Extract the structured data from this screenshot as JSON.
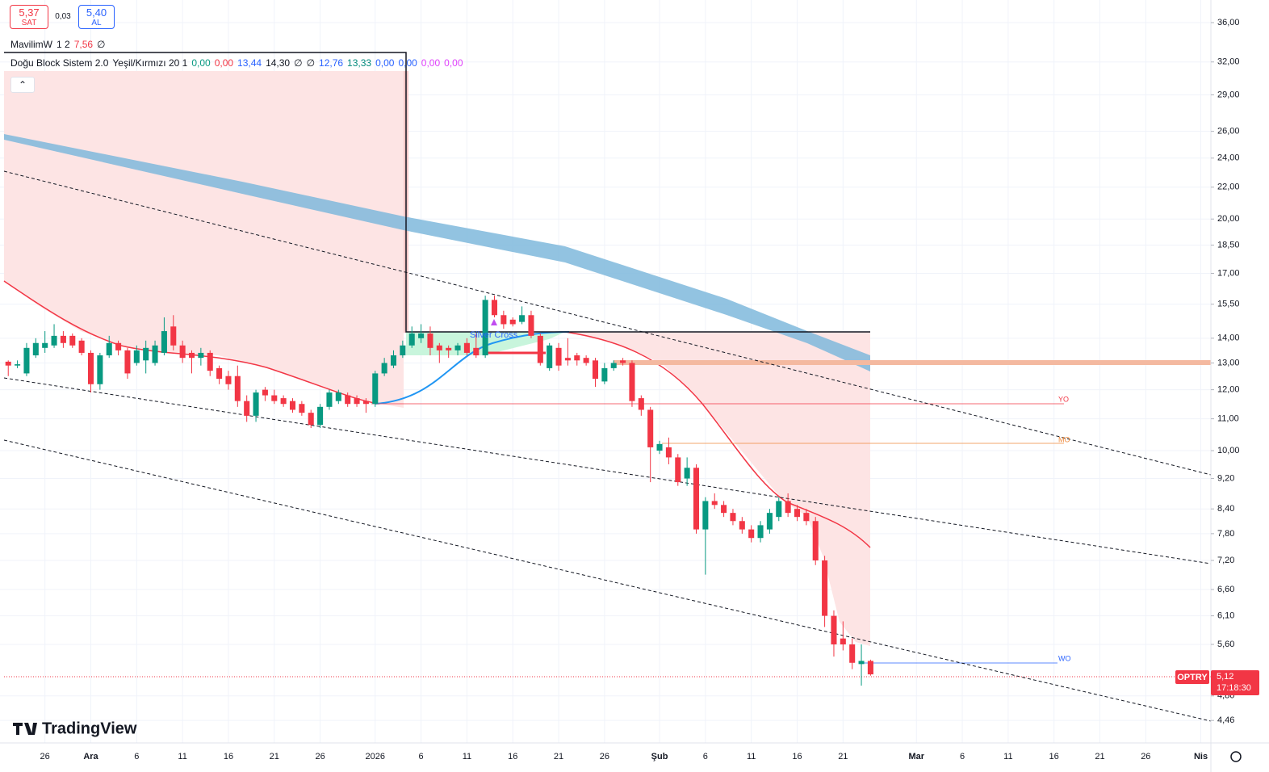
{
  "header": {
    "sell_price": "5,37",
    "sell_label": "SAT",
    "spread": "0,03",
    "buy_price": "5,40",
    "buy_label": "AL"
  },
  "indicators": [
    {
      "name": "MavilimW",
      "params": "1 2",
      "values": [
        {
          "text": "7,56",
          "color": "#f23645"
        },
        {
          "text": "∅",
          "color": "#131722"
        }
      ]
    },
    {
      "name": "Doğu Block Sistem 2.0",
      "params": "Yeşil/Kırmızı 20 1",
      "values": [
        {
          "text": "0,00",
          "color": "#089981"
        },
        {
          "text": "0,00",
          "color": "#f23645"
        },
        {
          "text": "13,44",
          "color": "#2962ff"
        },
        {
          "text": "14,30",
          "color": "#131722"
        },
        {
          "text": "∅",
          "color": "#131722"
        },
        {
          "text": "∅",
          "color": "#131722"
        },
        {
          "text": "12,76",
          "color": "#2962ff"
        },
        {
          "text": "13,33",
          "color": "#00897b"
        },
        {
          "text": "0,00",
          "color": "#2962ff"
        },
        {
          "text": "0,00",
          "color": "#2962ff"
        },
        {
          "text": "0,00",
          "color": "#e040fb"
        },
        {
          "text": "0,00",
          "color": "#e040fb"
        }
      ]
    }
  ],
  "chart_data": {
    "type": "candlestick",
    "log_scale": true,
    "grid": true,
    "up_color": "#089981",
    "down_color": "#f23645",
    "series": [
      {
        "name": "OPTRY",
        "x": [
          0,
          1,
          2,
          3,
          4,
          5,
          6,
          7,
          8,
          9,
          10,
          11,
          12,
          13,
          14,
          15,
          16,
          17,
          18,
          19,
          20,
          21,
          22,
          23,
          24,
          25,
          26,
          27,
          28,
          29,
          30,
          31,
          32,
          33,
          34,
          35,
          36,
          37,
          38,
          39,
          40,
          41,
          42,
          43,
          44,
          45,
          46,
          47,
          48,
          49,
          50,
          51,
          52,
          53,
          54,
          55,
          56,
          57,
          58,
          59,
          60,
          61,
          62,
          63,
          64,
          65,
          66,
          67,
          68,
          69,
          70,
          71,
          72,
          73,
          74,
          75,
          76,
          77,
          78,
          79,
          80,
          81,
          82,
          83,
          84,
          85,
          86,
          87,
          88,
          89,
          90,
          91,
          92,
          93,
          94
        ],
        "open": [
          13.05,
          12.9,
          12.6,
          13.3,
          13.6,
          13.7,
          14.1,
          14.1,
          13.9,
          13.4,
          12.2,
          13.3,
          13.8,
          13.5,
          13.0,
          13.1,
          13.0,
          13.4,
          14.5,
          13.7,
          13.4,
          13.2,
          13.4,
          12.8,
          12.5,
          12.5,
          11.6,
          11.1,
          12.0,
          11.8,
          11.7,
          11.6,
          11.5,
          11.2,
          10.8,
          11.4,
          11.6,
          11.8,
          11.7,
          11.6,
          11.5,
          12.6,
          12.9,
          13.3,
          13.7,
          14.0,
          14.2,
          13.7,
          13.6,
          13.5,
          13.8,
          13.6,
          13.3,
          15.7,
          15.0,
          14.8,
          14.7,
          15.0,
          14.1,
          12.8,
          13.6,
          13.2,
          13.3,
          13.2,
          13.1,
          12.3,
          12.8,
          13.1,
          13.0,
          11.7,
          11.3,
          10.0,
          10.1,
          9.8,
          9.2,
          9.5,
          7.9,
          8.6,
          8.5,
          8.3,
          8.1,
          7.9,
          7.7,
          7.9,
          8.2,
          8.6,
          8.4,
          8.3,
          8.1,
          7.2,
          6.1,
          5.7,
          5.6,
          5.28,
          5.33
        ],
        "high": [
          13.1,
          13.1,
          13.8,
          14.0,
          14.3,
          14.6,
          14.3,
          14.2,
          14.0,
          13.5,
          13.4,
          14.1,
          13.9,
          13.6,
          13.7,
          13.9,
          13.9,
          14.9,
          15.0,
          13.9,
          13.5,
          13.6,
          13.5,
          12.9,
          12.7,
          12.9,
          11.8,
          12.0,
          12.1,
          12.0,
          11.8,
          11.7,
          11.6,
          11.3,
          11.5,
          12.0,
          12.0,
          11.9,
          11.8,
          11.7,
          12.7,
          13.2,
          13.5,
          13.9,
          14.5,
          14.6,
          14.5,
          13.8,
          13.7,
          13.8,
          14.0,
          14.2,
          15.9,
          15.9,
          15.2,
          14.9,
          15.4,
          15.2,
          14.2,
          13.8,
          13.8,
          14.0,
          13.4,
          13.3,
          13.2,
          13.0,
          13.1,
          13.2,
          13.1,
          11.8,
          11.4,
          10.3,
          10.4,
          9.9,
          9.8,
          9.6,
          8.7,
          8.8,
          8.6,
          8.4,
          8.2,
          8.0,
          8.1,
          8.4,
          8.7,
          8.8,
          8.5,
          8.4,
          8.2,
          7.3,
          6.2,
          6.0,
          5.7,
          5.6,
          5.35
        ],
        "low": [
          12.5,
          12.8,
          12.5,
          13.2,
          13.4,
          13.6,
          13.6,
          13.6,
          13.3,
          11.9,
          12.0,
          13.2,
          13.3,
          12.4,
          12.9,
          12.6,
          12.9,
          13.3,
          13.5,
          13.0,
          12.6,
          12.9,
          12.5,
          12.2,
          12.0,
          11.4,
          10.9,
          10.9,
          11.6,
          11.5,
          11.4,
          11.2,
          11.1,
          10.7,
          10.7,
          11.3,
          11.5,
          11.4,
          11.4,
          11.2,
          11.4,
          12.5,
          12.8,
          13.2,
          13.6,
          13.8,
          13.3,
          13.0,
          13.2,
          13.3,
          13.3,
          13.2,
          13.2,
          14.9,
          14.4,
          14.5,
          14.6,
          14.0,
          12.9,
          12.7,
          12.7,
          12.9,
          12.9,
          12.9,
          12.1,
          12.2,
          12.7,
          12.9,
          11.4,
          11.1,
          9.1,
          9.9,
          9.6,
          9.0,
          9.0,
          7.8,
          6.9,
          8.4,
          8.2,
          8.0,
          7.8,
          7.6,
          7.6,
          7.8,
          8.1,
          8.2,
          8.1,
          8.0,
          7.1,
          5.9,
          5.4,
          5.5,
          5.2,
          4.95,
          5.1
        ],
        "close": [
          12.9,
          12.95,
          13.6,
          13.8,
          13.8,
          14.1,
          13.8,
          13.7,
          13.4,
          12.2,
          13.3,
          13.8,
          13.5,
          12.6,
          13.5,
          13.6,
          13.7,
          14.3,
          13.7,
          13.2,
          13.2,
          13.4,
          12.7,
          12.4,
          12.2,
          11.6,
          11.1,
          11.9,
          11.8,
          11.6,
          11.5,
          11.3,
          11.2,
          10.8,
          11.4,
          11.9,
          11.9,
          11.5,
          11.5,
          11.5,
          12.6,
          13.0,
          13.3,
          13.7,
          14.2,
          14.2,
          13.6,
          13.5,
          13.5,
          13.7,
          13.4,
          13.3,
          15.7,
          15.0,
          14.6,
          14.6,
          15.0,
          14.1,
          13.0,
          13.7,
          12.9,
          13.1,
          13.1,
          13.0,
          12.4,
          12.8,
          13.0,
          13.0,
          11.6,
          11.3,
          10.1,
          10.2,
          9.8,
          9.1,
          9.5,
          7.9,
          8.6,
          8.5,
          8.3,
          8.1,
          7.9,
          7.7,
          8.0,
          8.3,
          8.6,
          8.3,
          8.2,
          8.1,
          7.2,
          6.1,
          5.6,
          5.6,
          5.3,
          5.33,
          5.12
        ]
      }
    ],
    "xlim": [
      -0.9,
      131.1
    ],
    "xticks": [
      {
        "value": 4,
        "label": "26"
      },
      {
        "value": 9,
        "label": "Ara"
      },
      {
        "value": 14,
        "label": "6"
      },
      {
        "value": 19,
        "label": "11"
      },
      {
        "value": 24,
        "label": "16"
      },
      {
        "value": 29,
        "label": "21"
      },
      {
        "value": 34,
        "label": "26"
      },
      {
        "value": 40,
        "label": "2026"
      },
      {
        "value": 45,
        "label": "6"
      },
      {
        "value": 50,
        "label": "11"
      },
      {
        "value": 55,
        "label": "16"
      },
      {
        "value": 60,
        "label": "21"
      },
      {
        "value": 65,
        "label": "26"
      },
      {
        "value": 71,
        "label": "Şub"
      },
      {
        "value": 76,
        "label": "6"
      },
      {
        "value": 81,
        "label": "11"
      },
      {
        "value": 86,
        "label": "16"
      },
      {
        "value": 91,
        "label": "21"
      },
      {
        "value": 99,
        "label": "Mar"
      },
      {
        "value": 104,
        "label": "6"
      },
      {
        "value": 109,
        "label": "11"
      },
      {
        "value": 114,
        "label": "16"
      },
      {
        "value": 119,
        "label": "21"
      },
      {
        "value": 124,
        "label": "26"
      },
      {
        "value": 130,
        "label": "Nis"
      }
    ],
    "ylim": [
      4.17,
      38.52
    ],
    "yticks": [
      {
        "value": 36,
        "label": "36,00"
      },
      {
        "value": 32,
        "label": "32,00"
      },
      {
        "value": 29,
        "label": "29,00"
      },
      {
        "value": 26,
        "label": "26,00"
      },
      {
        "value": 24,
        "label": "24,00"
      },
      {
        "value": 22,
        "label": "22,00"
      },
      {
        "value": 20,
        "label": "20,00"
      },
      {
        "value": 18.5,
        "label": "18,50"
      },
      {
        "value": 17,
        "label": "17,00"
      },
      {
        "value": 15.5,
        "label": "15,50"
      },
      {
        "value": 14,
        "label": "14,00"
      },
      {
        "value": 13,
        "label": "13,00"
      },
      {
        "value": 12,
        "label": "12,00"
      },
      {
        "value": 11,
        "label": "11,00"
      },
      {
        "value": 10,
        "label": "10,00"
      },
      {
        "value": 9.2,
        "label": "9,20"
      },
      {
        "value": 8.4,
        "label": "8,40"
      },
      {
        "value": 7.8,
        "label": "7,80"
      },
      {
        "value": 7.2,
        "label": "7,20"
      },
      {
        "value": 6.6,
        "label": "6,60"
      },
      {
        "value": 6.1,
        "label": "6,10"
      },
      {
        "value": 5.6,
        "label": "5,60"
      },
      {
        "value": 4.8,
        "label": "4,80"
      },
      {
        "value": 4.46,
        "label": "4,46"
      }
    ]
  },
  "annotations": {
    "cross": "Silver Cross",
    "yearly": "YO",
    "monthly": "MO",
    "weekly": "WO"
  },
  "price_label": {
    "symbol": "OPTRY",
    "price": "5,12",
    "countdown": "17:18:30"
  },
  "branding": "TradingView"
}
